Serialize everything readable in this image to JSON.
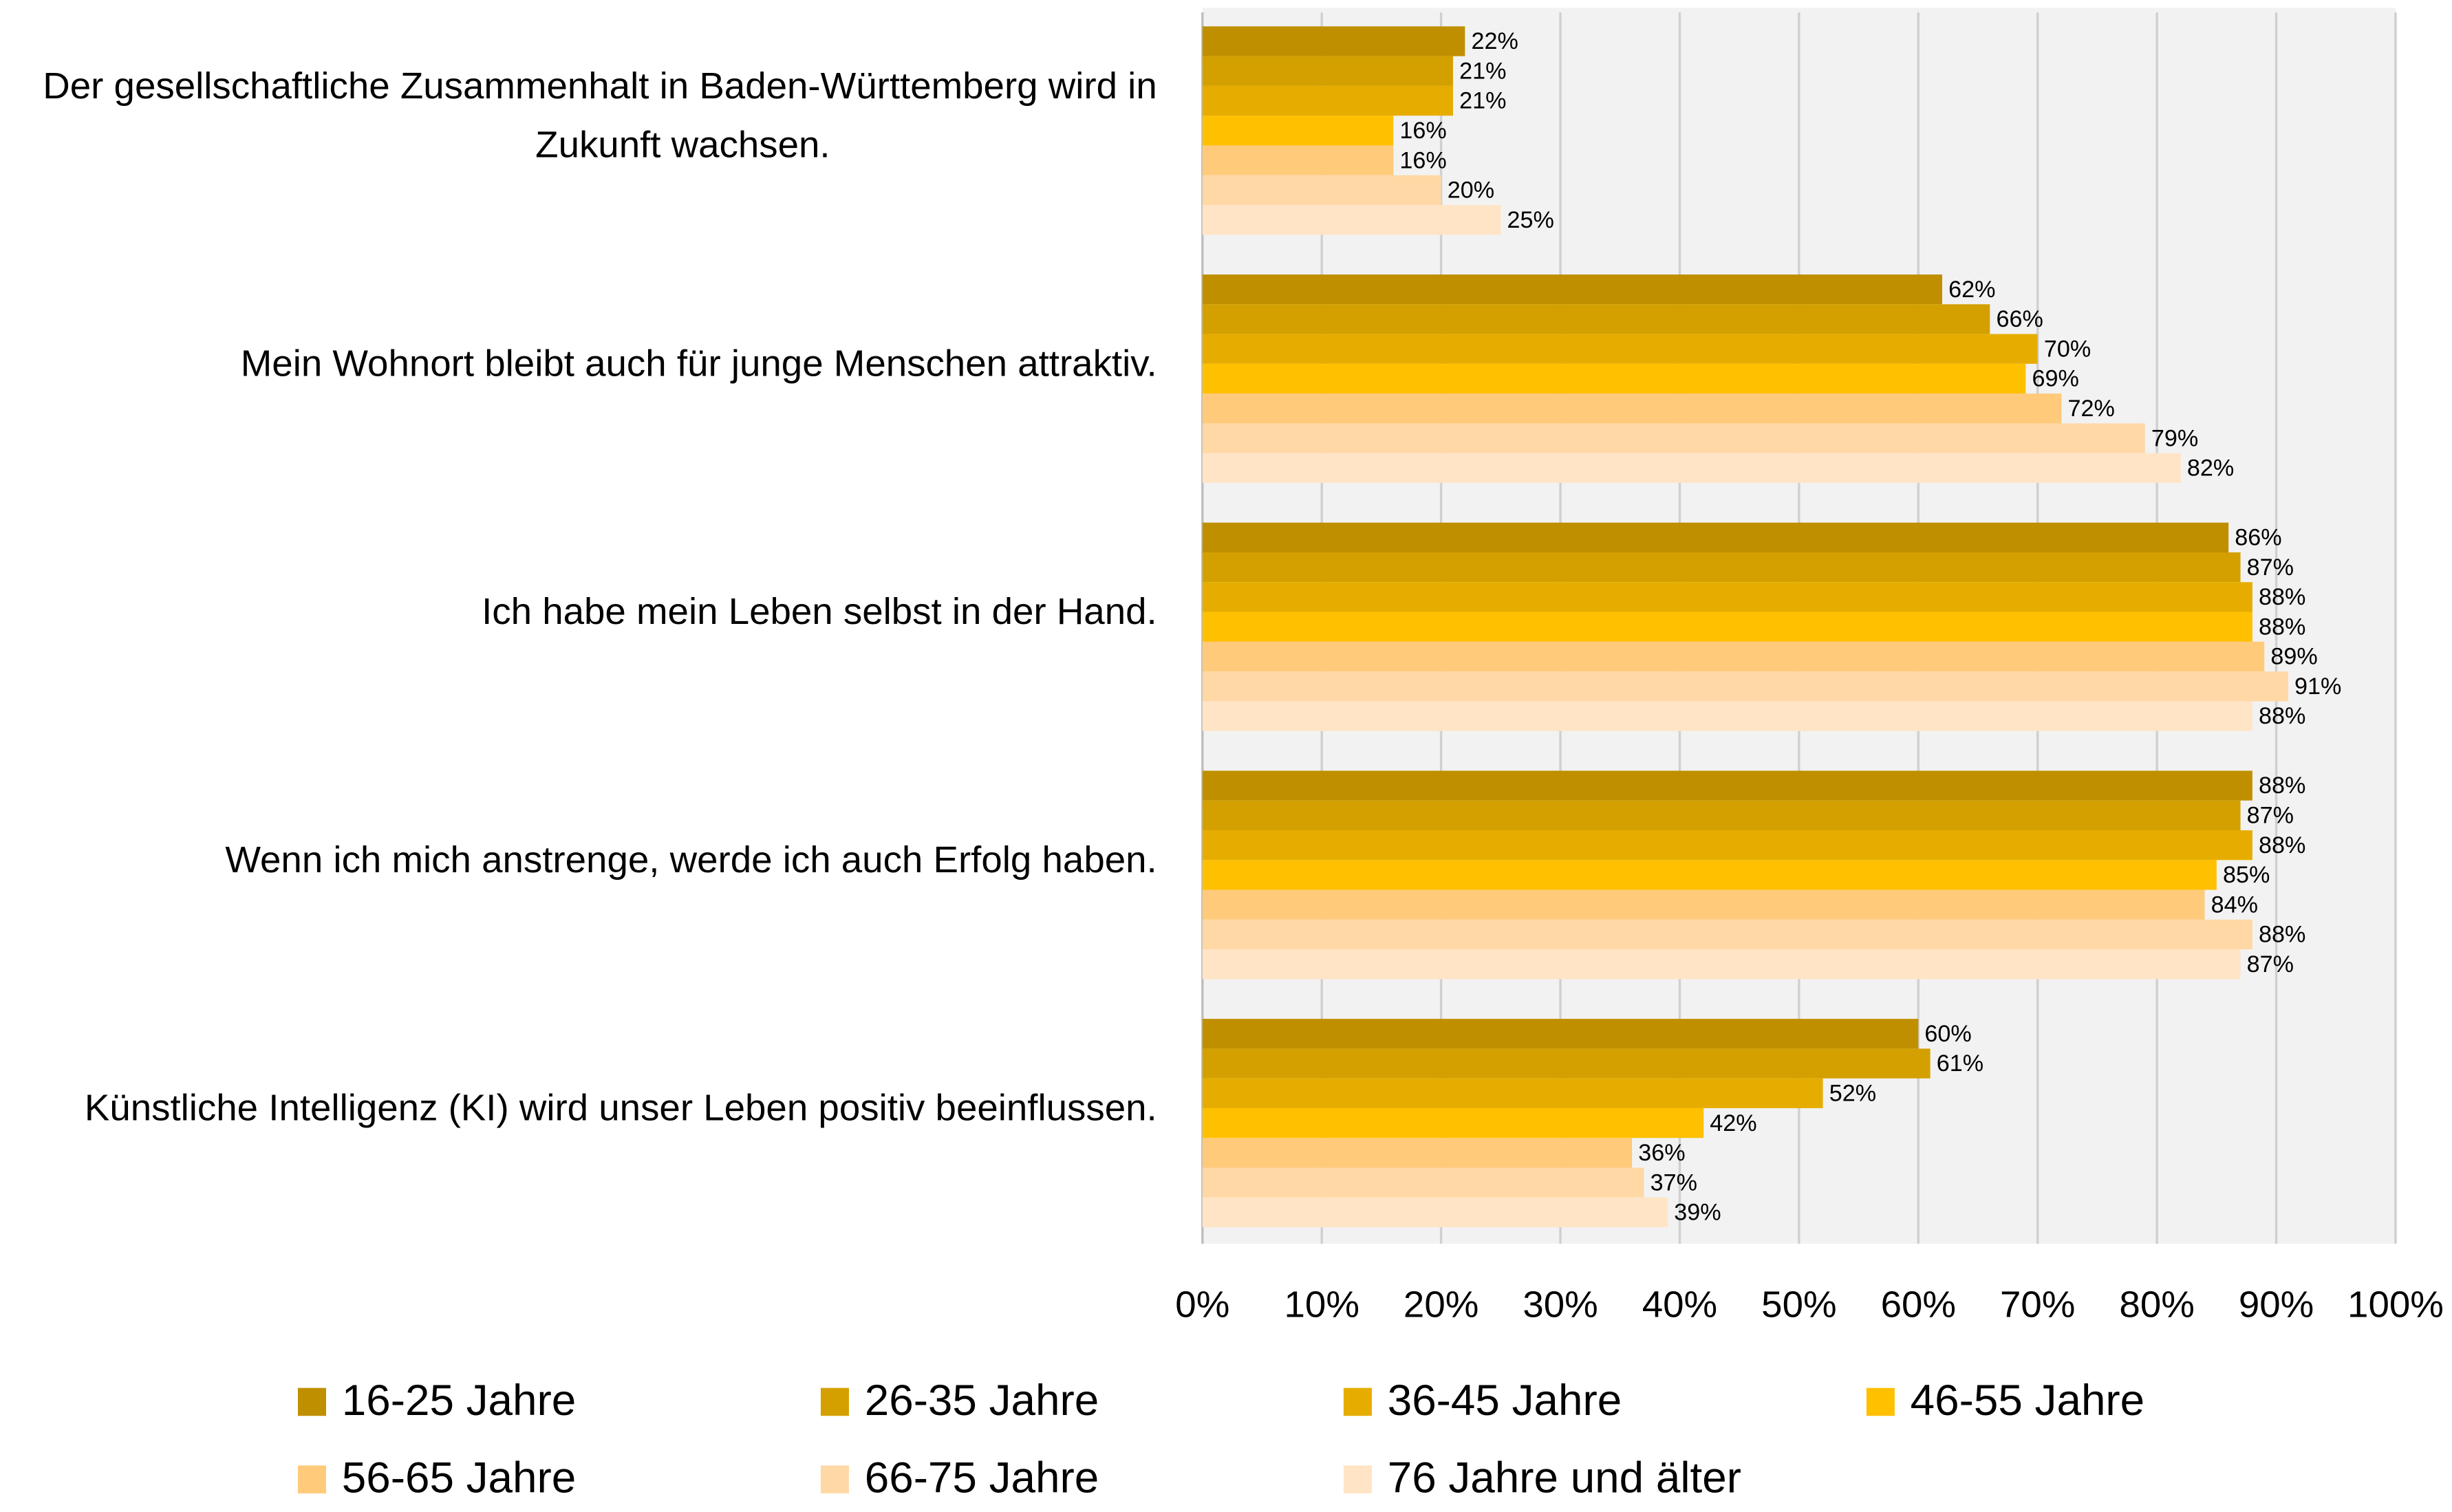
{
  "chart_data": {
    "type": "hbar",
    "categories": [
      "Der gesellschaftliche Zusammenhalt in Baden-Württemberg wird in Zukunft wachsen.",
      "Mein Wohnort bleibt auch für junge Menschen attraktiv.",
      "Ich habe mein Leben selbst in der Hand.",
      "Wenn ich mich anstrenge, werde ich auch Erfolg haben.",
      "Künstliche Intelligenz (KI) wird unser Leben positiv beeinflussen."
    ],
    "series": [
      {
        "name": "16-25 Jahre",
        "color": "#bf8f00",
        "values": [
          22,
          62,
          86,
          88,
          60
        ],
        "value_labels": [
          "22%",
          "62%",
          "86%",
          "88%",
          "60%"
        ]
      },
      {
        "name": "26-35 Jahre",
        "color": "#d4a000",
        "values": [
          21,
          66,
          87,
          87,
          61
        ],
        "value_labels": [
          "21%",
          "66%",
          "87%",
          "87%",
          "61%"
        ]
      },
      {
        "name": "36-45 Jahre",
        "color": "#e6ad00",
        "values": [
          21,
          70,
          88,
          88,
          52
        ],
        "value_labels": [
          "21%",
          "70%",
          "88%",
          "88%",
          "52%"
        ]
      },
      {
        "name": "46-55 Jahre",
        "color": "#ffc000",
        "values": [
          16,
          69,
          88,
          85,
          42
        ],
        "value_labels": [
          "16%",
          "69%",
          "88%",
          "85%",
          "42%"
        ]
      },
      {
        "name": "56-65 Jahre",
        "color": "#ffca7a",
        "values": [
          16,
          72,
          89,
          84,
          36
        ],
        "value_labels": [
          "16%",
          "72%",
          "89%",
          "84%",
          "36%"
        ]
      },
      {
        "name": "66-75 Jahre",
        "color": "#ffd8a6",
        "values": [
          20,
          79,
          91,
          88,
          37
        ],
        "value_labels": [
          "20%",
          "79%",
          "91%",
          "88%",
          "37%"
        ]
      },
      {
        "name": "76 Jahre und älter",
        "color": "#ffe4c6",
        "values": [
          25,
          82,
          88,
          87,
          39
        ],
        "value_labels": [
          "25%",
          "82%",
          "88%",
          "87%",
          "39%"
        ]
      }
    ],
    "xlim": [
      0,
      100
    ],
    "xticks": [
      {
        "value": 0,
        "label": "0%"
      },
      {
        "value": 10,
        "label": "10%"
      },
      {
        "value": 20,
        "label": "20%"
      },
      {
        "value": 30,
        "label": "30%"
      },
      {
        "value": 40,
        "label": "40%"
      },
      {
        "value": 50,
        "label": "50%"
      },
      {
        "value": 60,
        "label": "60%"
      },
      {
        "value": 70,
        "label": "70%"
      },
      {
        "value": 80,
        "label": "80%"
      },
      {
        "value": 90,
        "label": "90%"
      },
      {
        "value": 100,
        "label": "100%"
      }
    ],
    "grid": true,
    "legend": "bottom"
  }
}
